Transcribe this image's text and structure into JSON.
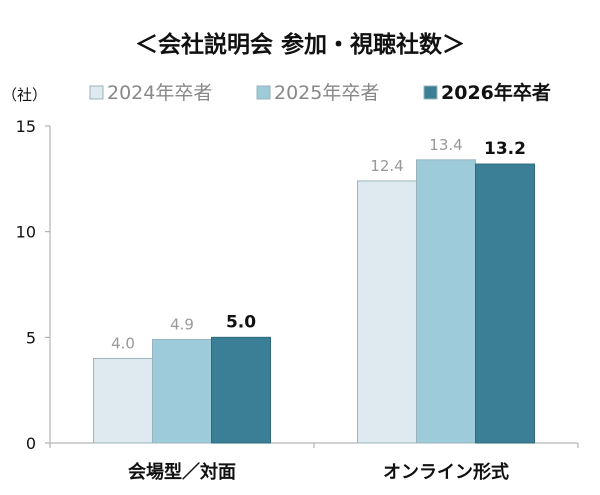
{
  "chart_data": {
    "type": "bar",
    "title": "＜会社説明会 参加・視聴社数＞",
    "unit_label": "（社）",
    "categories": [
      "会場型／対面",
      "オンライン形式"
    ],
    "series": [
      {
        "name": "2024年卒者",
        "values": [
          4.0,
          12.4
        ],
        "labels": [
          "4.0",
          "12.4"
        ],
        "color": "#deeaf0",
        "highlight": false
      },
      {
        "name": "2025年卒者",
        "values": [
          4.9,
          13.4
        ],
        "labels": [
          "4.9",
          "13.4"
        ],
        "color": "#9ecbd9",
        "highlight": false
      },
      {
        "name": "2026年卒者",
        "values": [
          5.0,
          13.2
        ],
        "labels": [
          "5.0",
          "13.2"
        ],
        "color": "#3a7f95",
        "highlight": true
      }
    ],
    "ylim": [
      0,
      15
    ],
    "yticks": [
      0,
      5,
      10,
      15
    ],
    "legend_position": "top",
    "grid": false
  }
}
